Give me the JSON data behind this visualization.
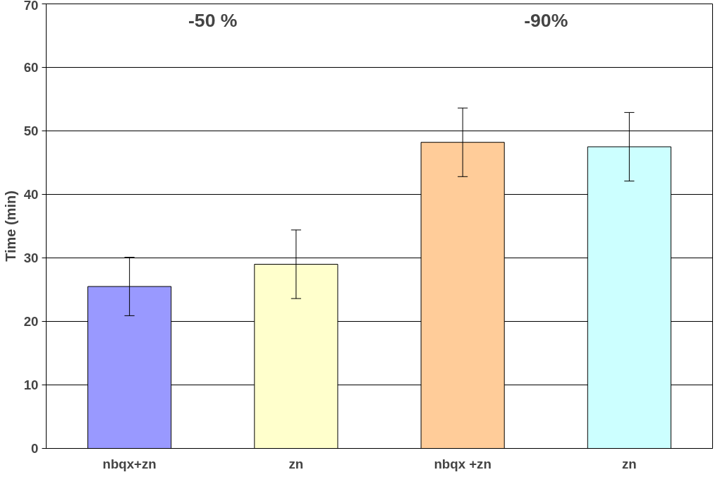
{
  "chart_data": {
    "type": "bar",
    "ylabel": "Time (min)",
    "categories": [
      "nbqx+zn",
      "zn",
      "nbqx +zn",
      "zn"
    ],
    "values": [
      25.5,
      29,
      48.2,
      47.5
    ],
    "colors": [
      "#9999ff",
      "#ffffcc",
      "#ffcc99",
      "#ccffff"
    ],
    "errors": [
      4.6,
      5.4,
      5.4,
      5.4
    ],
    "annotations": [
      "-50 %",
      "-90%"
    ],
    "ylim": [
      0,
      70
    ],
    "yticks": [
      0,
      10,
      20,
      30,
      40,
      50,
      60,
      70
    ],
    "grid": "y"
  }
}
